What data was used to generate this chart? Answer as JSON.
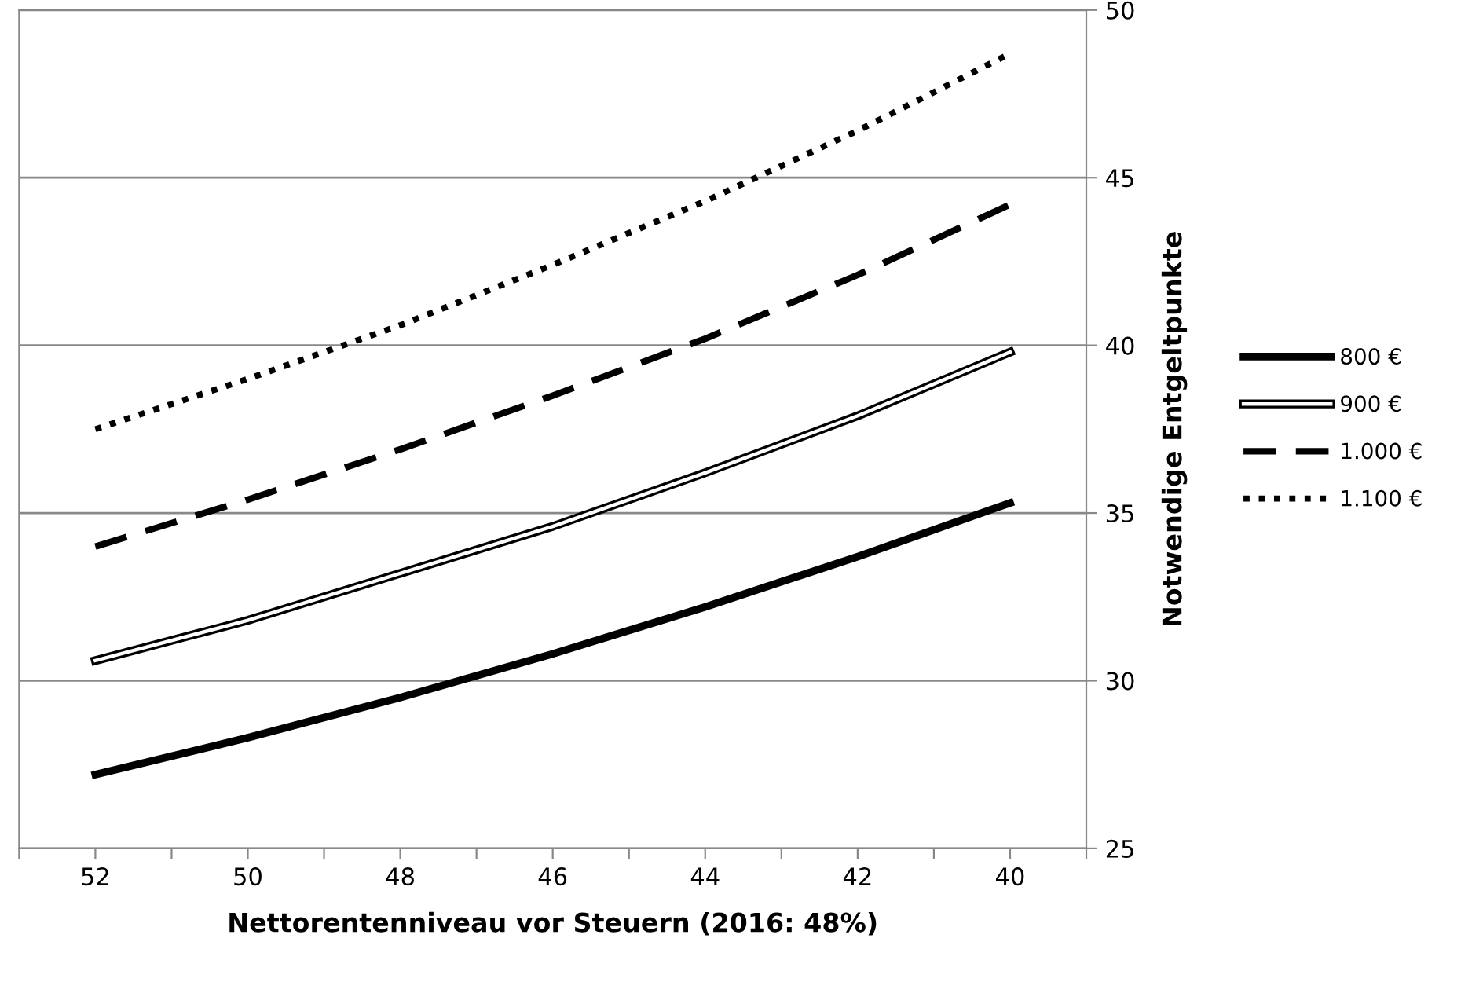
{
  "chart_data": {
    "type": "line",
    "xlabel": "Nettorentenniveau vor Steuern (2016: 48%)",
    "ylabel": "Notwendige Entgeltpunkte",
    "x": [
      52,
      50,
      48,
      46,
      44,
      42,
      40
    ],
    "series": [
      {
        "name": "800 €",
        "color": "#000000",
        "line_style": "solid",
        "values": [
          27.2,
          28.3,
          29.5,
          30.8,
          32.2,
          33.7,
          35.3
        ]
      },
      {
        "name": "900 €",
        "color": "#000000",
        "line_style": "solid",
        "values": [
          30.6,
          31.8,
          33.2,
          34.6,
          36.2,
          37.9,
          39.8
        ]
      },
      {
        "name": "1.000 €",
        "color": "#000000",
        "line_style": "dashed",
        "values": [
          34.0,
          35.4,
          36.9,
          38.5,
          40.2,
          42.1,
          44.2
        ]
      },
      {
        "name": "1.100 €",
        "color": "#000000",
        "line_style": "dotted",
        "values": [
          37.5,
          39.0,
          40.6,
          42.4,
          44.3,
          46.4,
          48.7
        ]
      }
    ],
    "xlim": [
      53,
      39
    ],
    "xticks": [
      {
        "value": 53,
        "label": null
      },
      52,
      {
        "value": 51,
        "label": null
      },
      50,
      {
        "value": 49,
        "label": null
      },
      48,
      {
        "value": 47,
        "label": null
      },
      46,
      {
        "value": 45,
        "label": null
      },
      44,
      {
        "value": 43,
        "label": null
      },
      42,
      {
        "value": 41,
        "label": null
      },
      40,
      {
        "value": 39,
        "label": null
      }
    ],
    "ylim": [
      25,
      50
    ],
    "yticks": [
      25,
      30,
      35,
      40,
      45,
      50
    ],
    "grid": "y",
    "legend": "right",
    "marker": "none"
  }
}
